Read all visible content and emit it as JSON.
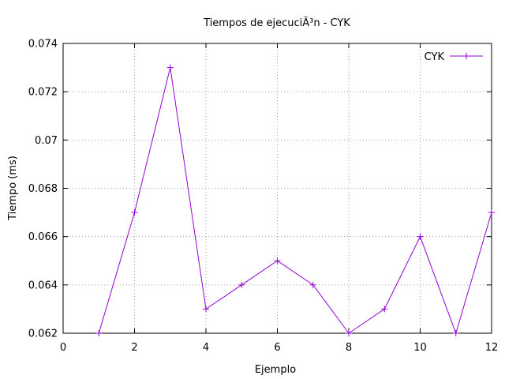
{
  "chart_data": {
    "type": "line",
    "title": "Tiempos de ejecuciÃ³n - CYK",
    "xlabel": "Ejemplo",
    "ylabel": "Tiempo (ms)",
    "xlim": [
      0,
      12
    ],
    "ylim": [
      0.062,
      0.074
    ],
    "xticks": [
      "0",
      "2",
      "4",
      "6",
      "8",
      "10",
      "12"
    ],
    "yticks": [
      "0.062",
      "0.064",
      "0.066",
      "0.068",
      "0.07",
      "0.072",
      "0.074"
    ],
    "grid": true,
    "legend_position": "top-right",
    "series": [
      {
        "name": "CYK",
        "color": "#9400d3",
        "marker": "plus",
        "x": [
          1,
          2,
          3,
          4,
          5,
          6,
          7,
          8,
          9,
          10,
          11,
          12
        ],
        "y": [
          0.062,
          0.067,
          0.073,
          0.063,
          0.064,
          0.065,
          0.064,
          0.062,
          0.063,
          0.066,
          0.062,
          0.067
        ]
      }
    ]
  }
}
